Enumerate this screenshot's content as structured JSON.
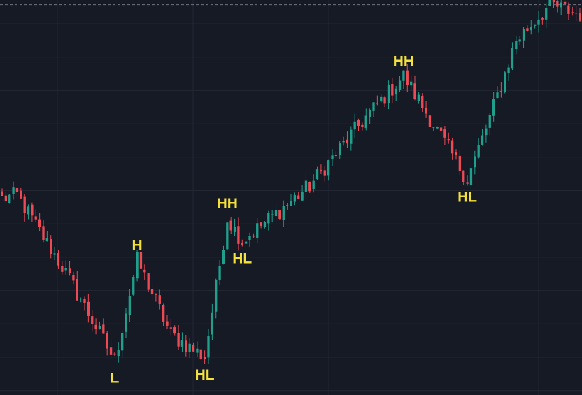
{
  "colors": {
    "background": "#161a25",
    "grid": "#232734",
    "dashed_line": "#6f7380",
    "up_candle": "#1f9f8c",
    "down_candle": "#ee4a55",
    "label": "#f4e13b"
  },
  "chart_data": {
    "type": "candlestick",
    "title": "",
    "xlabel": "",
    "ylabel": "",
    "grid": true,
    "legend": "none",
    "ylim": [
      10,
      128
    ],
    "candle_count": 155,
    "dashed_horizontal_line": 127,
    "swing_points": [
      {
        "index": 0,
        "label": "",
        "price": 67
      },
      {
        "index": 4,
        "label": "",
        "price": 68
      },
      {
        "index": 16,
        "label": "",
        "price": 46
      },
      {
        "index": 30,
        "label": "L",
        "price": 17
      },
      {
        "index": 36,
        "label": "H",
        "price": 48
      },
      {
        "index": 45,
        "label": "",
        "price": 25
      },
      {
        "index": 54,
        "label": "HL",
        "price": 18
      },
      {
        "index": 60,
        "label": "HH",
        "price": 61
      },
      {
        "index": 64,
        "label": "HL",
        "price": 54
      },
      {
        "index": 82,
        "label": "",
        "price": 71
      },
      {
        "index": 96,
        "label": "",
        "price": 91
      },
      {
        "index": 107,
        "label": "HH",
        "price": 105
      },
      {
        "index": 124,
        "label": "HL",
        "price": 73
      },
      {
        "index": 130,
        "label": "",
        "price": 92
      },
      {
        "index": 137,
        "label": "",
        "price": 116
      },
      {
        "index": 146,
        "label": "",
        "price": 127
      },
      {
        "index": 154,
        "label": "",
        "price": 124
      }
    ],
    "labels": [
      {
        "text": "L",
        "index": 30,
        "price": 17,
        "side": "below"
      },
      {
        "text": "H",
        "index": 36,
        "price": 48,
        "side": "above"
      },
      {
        "text": "HL",
        "index": 54,
        "price": 18,
        "side": "below"
      },
      {
        "text": "HH",
        "index": 60,
        "price": 61,
        "side": "above"
      },
      {
        "text": "HL",
        "index": 64,
        "price": 54,
        "side": "below"
      },
      {
        "text": "HH",
        "index": 107,
        "price": 105,
        "side": "above"
      },
      {
        "text": "HL",
        "index": 124,
        "price": 73,
        "side": "below"
      }
    ]
  }
}
